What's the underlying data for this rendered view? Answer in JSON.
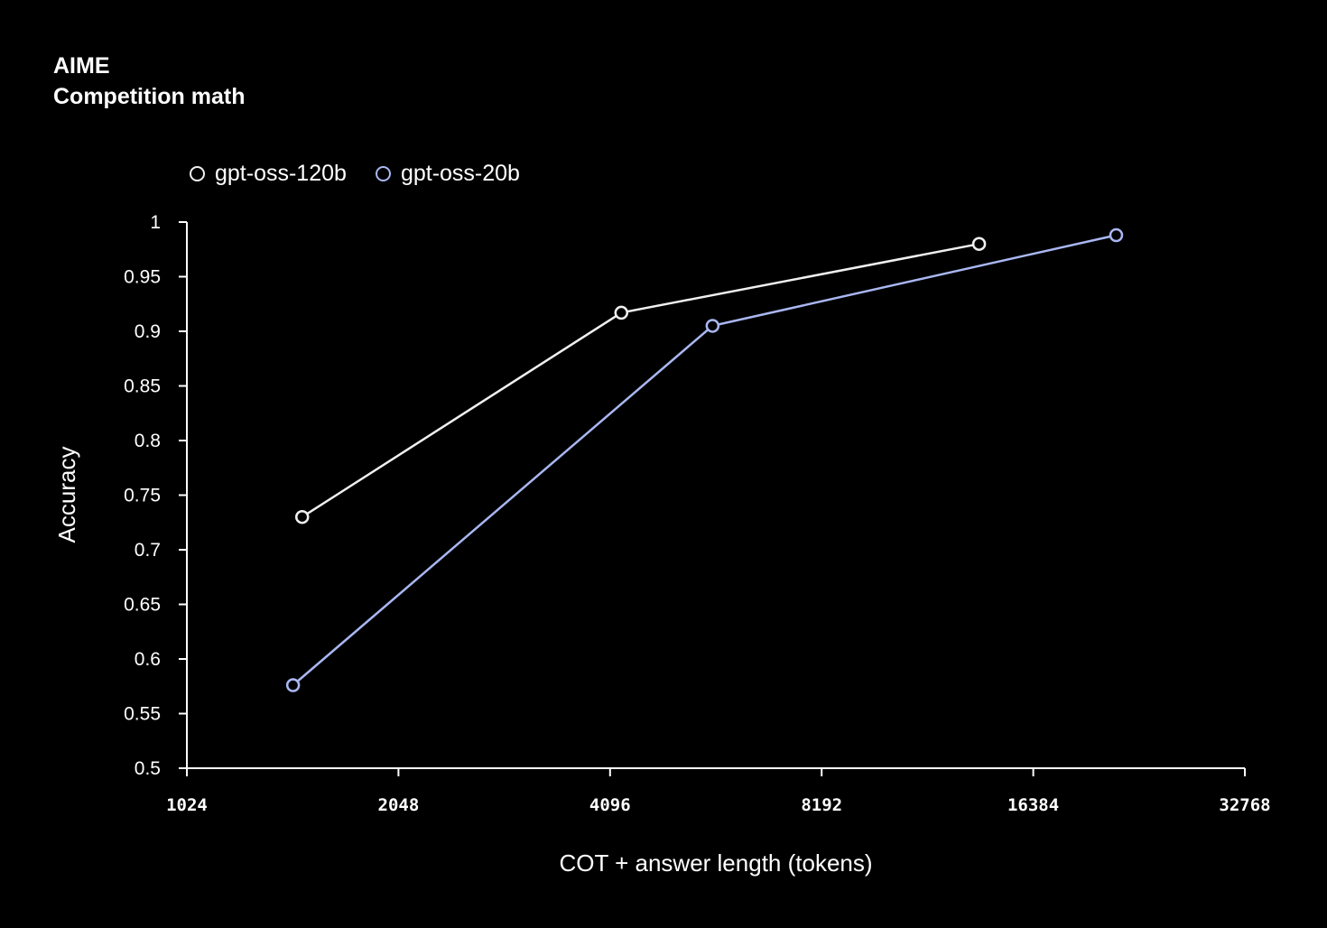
{
  "title": {
    "line1": "AIME",
    "line2": "Competition math"
  },
  "chart_data": {
    "type": "line",
    "xlabel": "COT + answer length (tokens)",
    "ylabel": "Accuracy",
    "x_scale": "log2",
    "xlim": [
      1024,
      32768
    ],
    "ylim": [
      0.5,
      1
    ],
    "xticks": [
      "1024",
      "2048",
      "4096",
      "8192",
      "16384",
      "32768"
    ],
    "yticks": [
      "0.5",
      "0.55",
      "0.6",
      "0.65",
      "0.7",
      "0.75",
      "0.8",
      "0.85",
      "0.9",
      "0.95",
      "1"
    ],
    "grid": false,
    "legend_position": "top-left",
    "series": [
      {
        "name": "gpt-oss-120b",
        "color": "#f0f0f0",
        "x": [
          1494,
          4250,
          13720
        ],
        "y": [
          0.73,
          0.917,
          0.98
        ]
      },
      {
        "name": "gpt-oss-20b",
        "color": "#a9b7f2",
        "x": [
          1450,
          5730,
          21500
        ],
        "y": [
          0.576,
          0.905,
          0.988
        ]
      }
    ]
  }
}
